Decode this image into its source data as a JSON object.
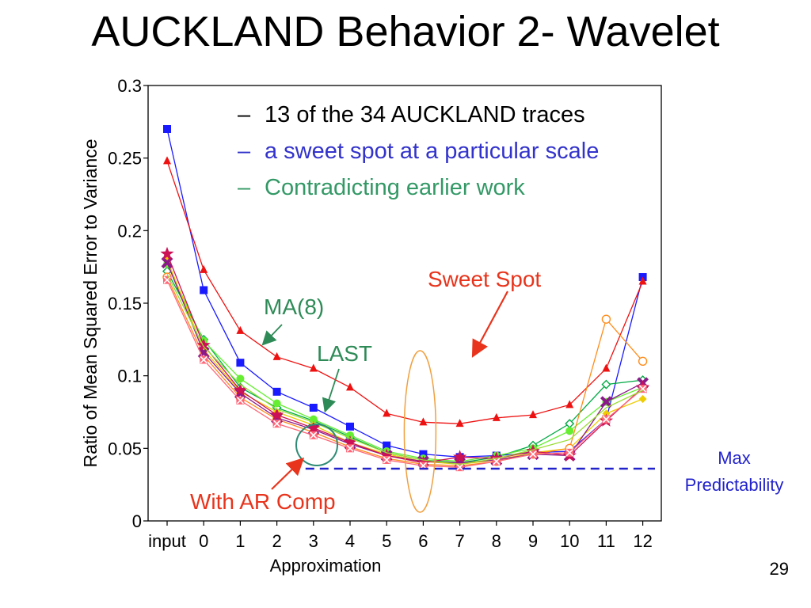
{
  "slide": {
    "title": "AUCKLAND Behavior 2- Wavelet",
    "page_number": "29",
    "bullets": [
      "13 of the 34 AUCKLAND traces",
      "a sweet spot at a particular scale",
      "Contradicting earlier work"
    ],
    "bullet_marker": "–"
  },
  "annotations": {
    "sweet_spot": "Sweet Spot",
    "ma8": "MA(8)",
    "last": "LAST",
    "with_ar_comp": "With AR Comp",
    "max_predictability_line1": "Max",
    "max_predictability_line2": "Predictability"
  },
  "colors": {
    "annotation_red": "#e8341c",
    "annotation_green": "#2e8b57",
    "annotation_blue": "#2222cc",
    "sweet_spot_ellipse": "#f0a040",
    "ar_comp_circle": "#2e8b75"
  },
  "chart_data": {
    "type": "line",
    "xlabel": "Approximation",
    "ylabel": "Ratio of Mean Squared Error to Variance",
    "categories": [
      "input",
      "0",
      "1",
      "2",
      "3",
      "4",
      "5",
      "6",
      "7",
      "8",
      "9",
      "10",
      "11",
      "12"
    ],
    "yticks": [
      "0",
      "0.05",
      "0.1",
      "0.15",
      "0.2",
      "0.25",
      "0.3"
    ],
    "ylim": [
      0,
      0.3
    ],
    "grid": false,
    "max_predictability": 0.036,
    "series": [
      {
        "color": "#1a1aff",
        "marker": "square",
        "values": [
          0.27,
          0.159,
          0.109,
          0.089,
          0.078,
          0.065,
          0.052,
          0.046,
          0.044,
          0.045,
          0.047,
          0.048,
          0.07,
          0.168
        ]
      },
      {
        "color": "#ee1111",
        "marker": "triangle",
        "values": [
          0.248,
          0.173,
          0.131,
          0.113,
          0.105,
          0.092,
          0.074,
          0.068,
          0.067,
          0.071,
          0.073,
          0.08,
          0.105,
          0.165
        ]
      },
      {
        "color": "#00aa44",
        "marker": "diamond-open",
        "values": [
          0.172,
          0.125,
          0.092,
          0.078,
          0.069,
          0.058,
          0.047,
          0.042,
          0.04,
          0.044,
          0.052,
          0.067,
          0.094,
          0.097
        ]
      },
      {
        "color": "#66ee33",
        "marker": "circle",
        "values": [
          0.177,
          0.124,
          0.098,
          0.081,
          0.07,
          0.059,
          0.048,
          0.043,
          0.041,
          0.045,
          0.05,
          0.062,
          0.082,
          0.092
        ]
      },
      {
        "color": "#eecc00",
        "marker": "diamond",
        "values": [
          0.18,
          0.118,
          0.089,
          0.075,
          0.066,
          0.054,
          0.046,
          0.041,
          0.039,
          0.042,
          0.047,
          0.05,
          0.074,
          0.084
        ]
      },
      {
        "color": "#ff8c1a",
        "marker": "circle-open",
        "values": [
          0.168,
          0.114,
          0.085,
          0.07,
          0.061,
          0.051,
          0.043,
          0.039,
          0.038,
          0.041,
          0.046,
          0.05,
          0.139,
          0.11
        ]
      },
      {
        "color": "#8a1a8a",
        "marker": "x",
        "values": [
          0.178,
          0.116,
          0.088,
          0.071,
          0.063,
          0.053,
          0.045,
          0.041,
          0.04,
          0.042,
          0.046,
          0.045,
          0.082,
          0.095
        ]
      },
      {
        "color": "#cc1155",
        "marker": "star",
        "values": [
          0.184,
          0.121,
          0.09,
          0.073,
          0.064,
          0.054,
          0.045,
          0.04,
          0.044,
          0.043,
          0.048,
          0.045,
          0.069,
          0.092
        ]
      },
      {
        "color": "#ff6677",
        "marker": "x-box",
        "values": [
          0.166,
          0.111,
          0.083,
          0.067,
          0.059,
          0.05,
          0.042,
          0.038,
          0.037,
          0.041,
          0.046,
          0.047,
          0.07,
          0.091
        ]
      },
      {
        "color": "#99dd33",
        "marker": "none",
        "values": [
          0.17,
          0.12,
          0.094,
          0.077,
          0.068,
          0.057,
          0.047,
          0.042,
          0.039,
          0.043,
          0.049,
          0.056,
          0.078,
          0.09
        ]
      }
    ]
  }
}
